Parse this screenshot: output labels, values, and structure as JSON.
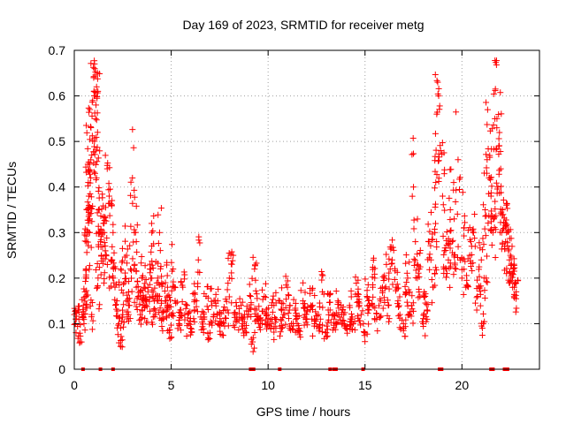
{
  "chart_data": {
    "type": "scatter",
    "title": "Day 169 of 2023, SRMTID for receiver metg",
    "xlabel": "GPS time / hours",
    "ylabel": "SRMTID / TECUs",
    "xlim": [
      0,
      24
    ],
    "ylim": [
      0,
      0.7
    ],
    "xticks": [
      "0",
      "5",
      "10",
      "15",
      "20"
    ],
    "xtick_values": [
      0,
      5,
      10,
      15,
      20
    ],
    "yticks": [
      "0",
      "0.1",
      "0.2",
      "0.3",
      "0.4",
      "0.5",
      "0.6",
      "0.7"
    ],
    "ytick_values": [
      0,
      0.1,
      0.2,
      0.3,
      0.4,
      0.5,
      0.6,
      0.7
    ],
    "grid": true,
    "marker": "+",
    "color": "#ff0000",
    "series": [
      {
        "name": "SRMTID",
        "x": [
          0.0,
          0.1,
          0.2,
          0.4,
          0.5,
          0.55,
          0.6,
          0.62,
          0.65,
          0.7,
          0.72,
          0.75,
          0.78,
          0.8,
          0.85,
          0.9,
          0.95,
          1.0,
          1.05,
          1.08,
          1.1,
          1.12,
          1.15,
          1.2,
          1.25,
          1.3,
          1.35,
          1.4,
          1.5,
          1.55,
          1.6,
          1.7,
          1.8,
          1.9,
          2.0,
          2.1,
          2.2,
          2.3,
          2.4,
          2.5,
          2.6,
          2.7,
          2.8,
          2.9,
          3.0,
          3.1,
          3.2,
          3.3,
          3.4,
          3.5,
          3.6,
          3.7,
          3.8,
          3.9,
          4.0,
          4.1,
          4.2,
          4.3,
          4.4,
          4.5,
          4.6,
          4.7,
          4.8,
          4.9,
          5.0,
          5.2,
          5.4,
          5.6,
          5.8,
          6.0,
          6.2,
          6.4,
          6.6,
          6.8,
          7.0,
          7.2,
          7.4,
          7.6,
          7.8,
          8.0,
          8.2,
          8.4,
          8.6,
          8.8,
          9.0,
          9.2,
          9.3,
          9.4,
          9.6,
          9.8,
          10.0,
          10.2,
          10.4,
          10.6,
          10.8,
          11.0,
          11.2,
          11.4,
          11.6,
          11.8,
          12.0,
          12.2,
          12.4,
          12.6,
          12.8,
          13.0,
          13.2,
          13.4,
          13.6,
          13.8,
          14.0,
          14.2,
          14.4,
          14.6,
          14.8,
          15.0,
          15.2,
          15.4,
          15.6,
          15.8,
          16.0,
          16.2,
          16.4,
          16.6,
          16.8,
          17.0,
          17.2,
          17.4,
          17.5,
          17.6,
          17.8,
          18.0,
          18.2,
          18.4,
          18.5,
          18.6,
          18.65,
          18.7,
          18.75,
          18.8,
          18.9,
          19.0,
          19.1,
          19.2,
          19.4,
          19.5,
          19.6,
          19.8,
          20.0,
          20.2,
          20.4,
          20.6,
          20.8,
          21.0,
          21.1,
          21.2,
          21.3,
          21.4,
          21.5,
          21.6,
          21.7,
          21.8,
          21.9,
          22.0,
          22.1,
          22.2,
          22.3,
          22.4,
          22.5,
          22.6,
          22.7,
          22.8,
          0.3,
          0.6,
          0.9,
          1.2,
          1.6,
          2.0,
          2.4,
          2.8,
          3.2,
          3.6,
          4.0,
          4.4,
          4.8,
          5.1,
          5.5,
          5.9,
          6.3,
          6.7,
          7.1,
          7.5,
          7.9,
          8.3,
          8.7,
          9.1,
          9.5,
          9.9,
          10.3,
          10.7,
          11.1,
          11.5,
          11.9,
          12.3,
          12.7,
          13.1,
          13.5,
          13.9,
          14.3,
          14.7,
          15.1,
          15.5,
          15.9,
          16.3,
          16.7,
          17.1,
          17.3,
          17.7,
          18.1,
          18.3,
          19.3,
          19.7,
          20.1,
          20.5,
          20.9,
          21.25,
          21.45,
          21.65,
          21.85,
          22.05,
          22.25,
          22.45,
          22.65
        ],
        "y": [
          0.12,
          0.11,
          0.13,
          0.12,
          0.1,
          0.17,
          0.22,
          0.28,
          0.35,
          0.45,
          0.41,
          0.38,
          0.3,
          0.33,
          0.42,
          0.47,
          0.59,
          0.64,
          0.66,
          0.6,
          0.55,
          0.58,
          0.62,
          0.52,
          0.35,
          0.3,
          0.28,
          0.25,
          0.32,
          0.3,
          0.26,
          0.44,
          0.38,
          0.24,
          0.2,
          0.18,
          0.15,
          0.1,
          0.05,
          0.12,
          0.19,
          0.25,
          0.14,
          0.22,
          0.42,
          0.3,
          0.28,
          0.16,
          0.12,
          0.2,
          0.18,
          0.14,
          0.17,
          0.22,
          0.3,
          0.13,
          0.16,
          0.2,
          0.3,
          0.15,
          0.11,
          0.19,
          0.13,
          0.08,
          0.12,
          0.15,
          0.1,
          0.18,
          0.14,
          0.09,
          0.13,
          0.24,
          0.11,
          0.16,
          0.08,
          0.12,
          0.15,
          0.1,
          0.13,
          0.2,
          0.25,
          0.11,
          0.14,
          0.09,
          0.12,
          0.06,
          0.22,
          0.13,
          0.1,
          0.16,
          0.12,
          0.11,
          0.09,
          0.15,
          0.12,
          0.18,
          0.1,
          0.13,
          0.09,
          0.15,
          0.11,
          0.14,
          0.1,
          0.12,
          0.17,
          0.08,
          0.13,
          0.11,
          0.15,
          0.12,
          0.09,
          0.14,
          0.1,
          0.16,
          0.12,
          0.08,
          0.13,
          0.18,
          0.11,
          0.15,
          0.2,
          0.14,
          0.24,
          0.18,
          0.12,
          0.09,
          0.2,
          0.14,
          0.4,
          0.28,
          0.22,
          0.1,
          0.13,
          0.24,
          0.18,
          0.3,
          0.41,
          0.56,
          0.63,
          0.6,
          0.48,
          0.38,
          0.26,
          0.22,
          0.35,
          0.28,
          0.33,
          0.46,
          0.2,
          0.18,
          0.25,
          0.3,
          0.16,
          0.24,
          0.1,
          0.35,
          0.46,
          0.42,
          0.38,
          0.3,
          0.55,
          0.53,
          0.49,
          0.44,
          0.35,
          0.27,
          0.3,
          0.26,
          0.25,
          0.21,
          0.18,
          0.17,
          0.06,
          0.16,
          0.12,
          0.18,
          0.26,
          0.3,
          0.22,
          0.12,
          0.18,
          0.15,
          0.2,
          0.16,
          0.14,
          0.22,
          0.13,
          0.1,
          0.15,
          0.11,
          0.14,
          0.1,
          0.13,
          0.12,
          0.1,
          0.16,
          0.11,
          0.12,
          0.14,
          0.09,
          0.13,
          0.1,
          0.12,
          0.14,
          0.11,
          0.13,
          0.1,
          0.12,
          0.11,
          0.14,
          0.16,
          0.2,
          0.18,
          0.22,
          0.15,
          0.17,
          0.12,
          0.2,
          0.16,
          0.28,
          0.24,
          0.22,
          0.31,
          0.27,
          0.18,
          0.2,
          0.42,
          0.33,
          0.4,
          0.3,
          0.28,
          0.24,
          0.22
        ],
        "jitter_seed": 169
      }
    ],
    "gap_markers_x": [
      0.45,
      1.35,
      2.0,
      9.1,
      9.25,
      10.6,
      13.2,
      13.4,
      13.5,
      14.9,
      18.85,
      18.95,
      21.5,
      21.6,
      22.2,
      22.35
    ]
  }
}
